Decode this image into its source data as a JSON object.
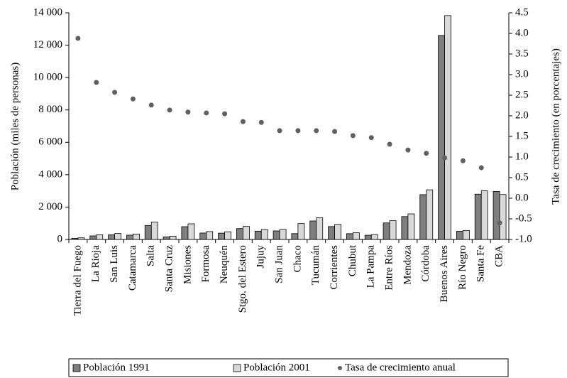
{
  "chart_data": {
    "type": "bar",
    "categories": [
      "Tierra del Fuego",
      "La Rioja",
      "San Luis",
      "Catamarca",
      "Salta",
      "Santa Cruz",
      "Misiones",
      "Formosa",
      "Neuquén",
      "Stgo. del Estero",
      "Jujuy",
      "San Juan",
      "Chaco",
      "Tucumán",
      "Corrientes",
      "Chubut",
      "La Pampa",
      "Entre Ríos",
      "Mendoza",
      "Córdoba",
      "Buenos Aires",
      "Río Negro",
      "Santa Fe",
      "CBA"
    ],
    "series": [
      {
        "name": "Población 1991",
        "type": "bar",
        "color": "#7f7f7f",
        "values": [
          70,
          220,
          286,
          265,
          866,
          160,
          789,
          398,
          389,
          672,
          513,
          528,
          360,
          1142,
          796,
          357,
          260,
          1020,
          1412,
          2767,
          12600,
          506,
          2798,
          2965
        ]
      },
      {
        "name": "Población 2001",
        "type": "bar",
        "color": "#d9d9d9",
        "values": [
          100,
          290,
          367,
          334,
          1079,
          197,
          966,
          486,
          474,
          804,
          612,
          620,
          980,
          1338,
          930,
          413,
          299,
          1158,
          1579,
          3066,
          13830,
          553,
          3001,
          2776
        ]
      },
      {
        "name": "Tasa de crecimiento anual",
        "type": "scatter",
        "axis": "y2",
        "color": "#606060",
        "values": [
          3.88,
          2.81,
          2.57,
          2.41,
          2.26,
          2.14,
          2.09,
          2.07,
          2.05,
          1.86,
          1.84,
          1.64,
          1.64,
          1.64,
          1.62,
          1.52,
          1.47,
          1.31,
          1.17,
          1.09,
          0.98,
          0.91,
          0.74,
          -0.6
        ]
      }
    ],
    "y_label": "Población (miles de personas)",
    "y2_label": "Tasa de crecimiento (en porcentajes)",
    "ylim": [
      0,
      14000
    ],
    "yticks": [
      0,
      {
        "value": 2000,
        "label": "2 000"
      },
      {
        "value": 4000,
        "label": "4 000"
      },
      {
        "value": 6000,
        "label": "6 000"
      },
      {
        "value": 8000,
        "label": "8 000"
      },
      {
        "value": 10000,
        "label": "10 000"
      },
      {
        "value": 12000,
        "label": "12 000"
      },
      {
        "value": 14000,
        "label": "14 000"
      }
    ],
    "y2lim": [
      -1,
      4.5
    ],
    "y2ticks": [
      {
        "value": -1,
        "label": "-1.0"
      },
      -0.5,
      {
        "value": 0,
        "label": "0.0"
      },
      0.5,
      {
        "value": 1,
        "label": "1.0"
      },
      1.5,
      {
        "value": 2,
        "label": "2.0"
      },
      2.5,
      {
        "value": 3,
        "label": "3.0"
      },
      3.5,
      {
        "value": 4,
        "label": "4.0"
      },
      4.5
    ],
    "legend": "bottom"
  }
}
